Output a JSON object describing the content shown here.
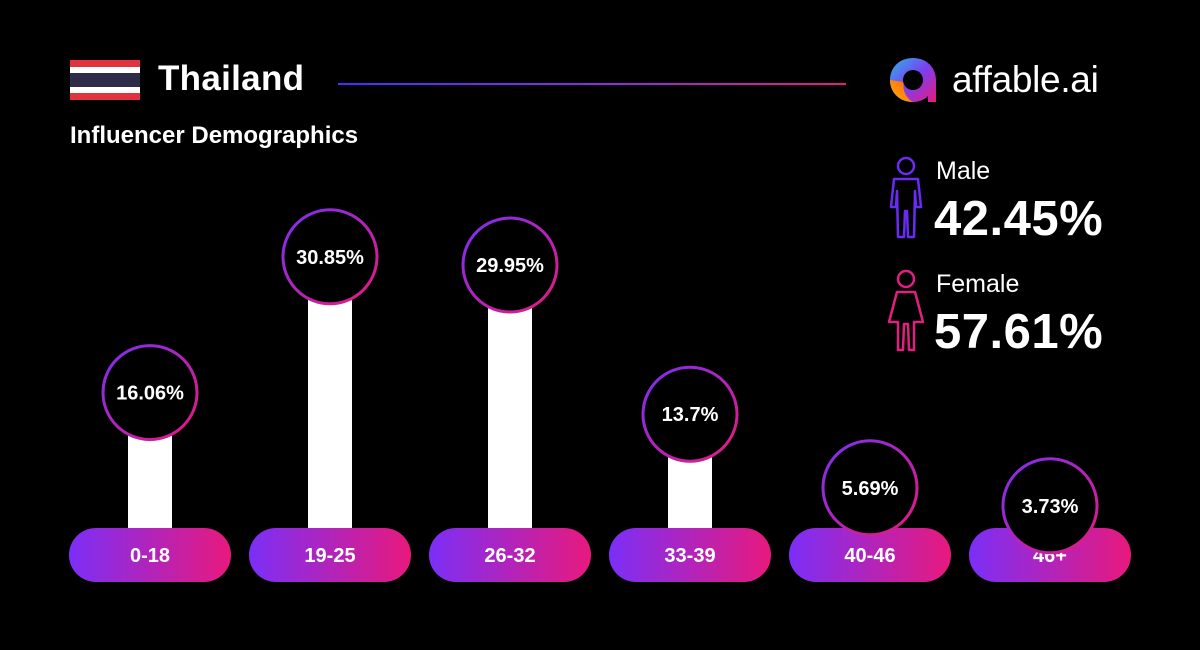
{
  "header": {
    "country": "Thailand",
    "subtitle": "Influencer Demographics"
  },
  "brand": {
    "name": "affable.ai",
    "icon": "affable-logo-icon"
  },
  "gender": {
    "male": {
      "label": "Male",
      "value": "42.45%",
      "icon": "male-figure-icon",
      "color": "#6a2bf5"
    },
    "female": {
      "label": "Female",
      "value": "57.61%",
      "icon": "female-figure-icon",
      "color": "#e0207e"
    }
  },
  "flag": {
    "icon": "thailand-flag-icon",
    "colors": {
      "red": "#e0333f",
      "white": "#ffffff",
      "blue": "#2d2a4a"
    }
  },
  "colors": {
    "gradient_start": "#7b2ff7",
    "gradient_end": "#e8197d",
    "background": "#000000",
    "bar": "#ffffff"
  },
  "chart_data": {
    "type": "bar",
    "categories": [
      "0-18",
      "19-25",
      "26-32",
      "33-39",
      "40-46",
      "46+"
    ],
    "values": [
      16.06,
      30.85,
      29.95,
      13.7,
      5.69,
      3.73
    ],
    "value_labels": [
      "16.06%",
      "30.85%",
      "29.95%",
      "13.7%",
      "5.69%",
      "3.73%"
    ],
    "title": "Influencer Demographics",
    "xlabel": "",
    "ylabel": "",
    "unit": "%",
    "grid": false,
    "legend": "none"
  }
}
